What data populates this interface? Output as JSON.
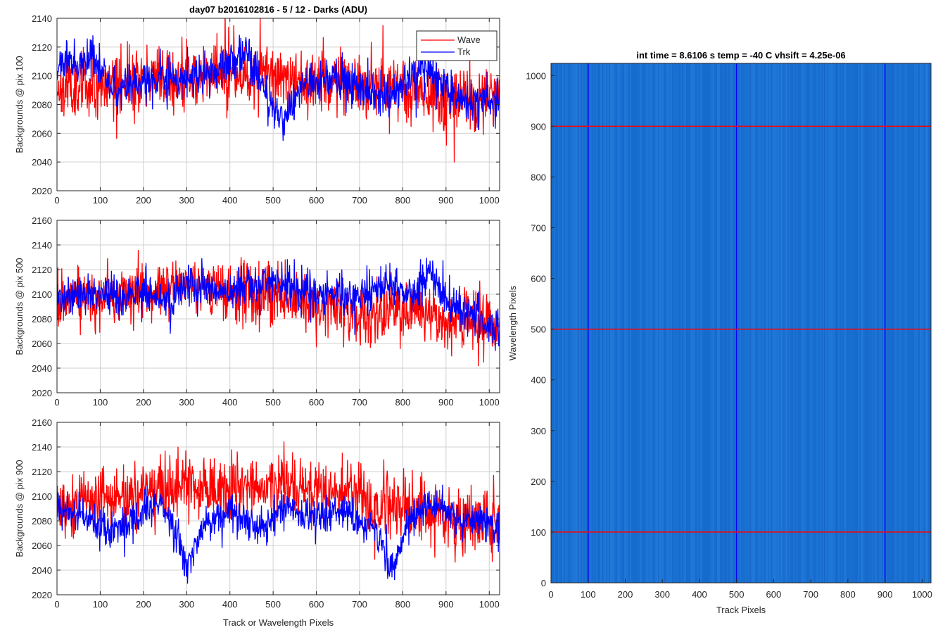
{
  "figure_title": "day07 b2016102816 - 5 / 12 - Darks (ADU)",
  "colors": {
    "wave": "#ff0000",
    "trk": "#0000ff",
    "image_base": "#1a72d4"
  },
  "chart_data": [
    {
      "type": "line",
      "title": "day07 b2016102816 - 5 / 12 - Darks (ADU)",
      "ylabel": "Backgrounds @ pix 100",
      "xlabel": "",
      "xlim": [
        0,
        1024
      ],
      "ylim": [
        2020,
        2140
      ],
      "xticks": [
        0,
        100,
        200,
        300,
        400,
        500,
        600,
        700,
        800,
        900,
        1000
      ],
      "yticks": [
        2020,
        2040,
        2060,
        2080,
        2100,
        2120,
        2140
      ],
      "grid": true,
      "legend": {
        "placement": "top-right",
        "entries": [
          "Wave",
          "Trk"
        ]
      },
      "series": [
        {
          "name": "Wave",
          "color": "#ff0000",
          "mean": 2095,
          "noise": 11,
          "seed": 11,
          "trend_x": [
            0,
            100,
            200,
            300,
            400,
            500,
            600,
            700,
            800,
            900,
            1024
          ],
          "trend_y": [
            2092,
            2095,
            2098,
            2100,
            2102,
            2101,
            2097,
            2092,
            2090,
            2085,
            2082
          ]
        },
        {
          "name": "Trk",
          "color": "#0000ff",
          "mean": 2095,
          "noise": 7,
          "seed": 23,
          "trend_x": [
            0,
            40,
            80,
            140,
            200,
            260,
            320,
            400,
            440,
            480,
            520,
            560,
            620,
            700,
            760,
            820,
            860,
            900,
            950,
            1024
          ],
          "trend_y": [
            2105,
            2110,
            2112,
            2088,
            2098,
            2095,
            2098,
            2108,
            2118,
            2090,
            2068,
            2090,
            2100,
            2088,
            2085,
            2100,
            2105,
            2092,
            2080,
            2082
          ]
        }
      ]
    },
    {
      "type": "line",
      "title": "",
      "ylabel": "Backgrounds @ pix 500",
      "xlabel": "",
      "xlim": [
        0,
        1024
      ],
      "ylim": [
        2020,
        2160
      ],
      "xticks": [
        0,
        100,
        200,
        300,
        400,
        500,
        600,
        700,
        800,
        900,
        1000
      ],
      "yticks": [
        2020,
        2040,
        2060,
        2080,
        2100,
        2120,
        2140,
        2160
      ],
      "grid": true,
      "series": [
        {
          "name": "Wave",
          "color": "#ff0000",
          "mean": 2095,
          "noise": 12,
          "seed": 37,
          "trend_x": [
            0,
            100,
            200,
            300,
            400,
            500,
            600,
            700,
            800,
            900,
            1024
          ],
          "trend_y": [
            2092,
            2098,
            2100,
            2108,
            2102,
            2100,
            2092,
            2085,
            2085,
            2080,
            2075
          ]
        },
        {
          "name": "Trk",
          "color": "#0000ff",
          "mean": 2100,
          "noise": 8,
          "seed": 41,
          "trend_x": [
            0,
            60,
            120,
            200,
            260,
            300,
            380,
            440,
            500,
            540,
            600,
            700,
            760,
            820,
            860,
            900,
            960,
            1024
          ],
          "trend_y": [
            2095,
            2102,
            2098,
            2100,
            2095,
            2110,
            2102,
            2108,
            2112,
            2105,
            2100,
            2098,
            2108,
            2100,
            2118,
            2095,
            2082,
            2072
          ]
        }
      ]
    },
    {
      "type": "line",
      "title": "",
      "ylabel": "Backgrounds @ pix 900",
      "xlabel": "Track or Wavelength Pixels",
      "xlim": [
        0,
        1024
      ],
      "ylim": [
        2020,
        2160
      ],
      "xticks": [
        0,
        100,
        200,
        300,
        400,
        500,
        600,
        700,
        800,
        900,
        1000
      ],
      "yticks": [
        2020,
        2040,
        2060,
        2080,
        2100,
        2120,
        2140,
        2160
      ],
      "grid": true,
      "series": [
        {
          "name": "Wave",
          "color": "#ff0000",
          "mean": 2098,
          "noise": 13,
          "seed": 53,
          "trend_x": [
            0,
            100,
            200,
            300,
            400,
            500,
            600,
            700,
            800,
            900,
            1024
          ],
          "trend_y": [
            2090,
            2098,
            2102,
            2110,
            2108,
            2110,
            2105,
            2095,
            2090,
            2085,
            2078
          ]
        },
        {
          "name": "Trk",
          "color": "#0000ff",
          "mean": 2080,
          "noise": 7,
          "seed": 67,
          "trend_x": [
            0,
            60,
            120,
            180,
            240,
            280,
            300,
            340,
            400,
            460,
            520,
            560,
            620,
            680,
            740,
            770,
            820,
            880,
            940,
            1024
          ],
          "trend_y": [
            2090,
            2085,
            2070,
            2078,
            2095,
            2062,
            2045,
            2075,
            2088,
            2075,
            2090,
            2085,
            2082,
            2085,
            2070,
            2040,
            2085,
            2095,
            2080,
            2078
          ]
        }
      ]
    },
    {
      "type": "heatmap",
      "title": "int time = 8.6106 s    temp = -40 C    vhsift = 4.25e-06",
      "xlabel": "Track Pixels",
      "ylabel": "Wavelength Pixels",
      "xlim": [
        0,
        1024
      ],
      "ylim": [
        0,
        1024
      ],
      "xticks": [
        0,
        100,
        200,
        300,
        400,
        500,
        600,
        700,
        800,
        900,
        1000
      ],
      "yticks": [
        0,
        100,
        200,
        300,
        400,
        500,
        600,
        700,
        800,
        900,
        1000
      ],
      "grid": false,
      "vertical_markers": [
        100,
        500,
        900
      ],
      "horizontal_markers": [
        100,
        500,
        900
      ],
      "vertical_marker_color": "#0000ff",
      "horizontal_marker_color": "#ff0000"
    }
  ]
}
